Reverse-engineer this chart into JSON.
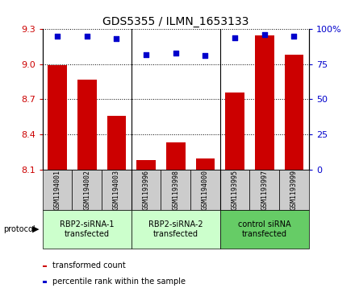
{
  "title": "GDS5355 / ILMN_1653133",
  "samples": [
    "GSM1194001",
    "GSM1194002",
    "GSM1194003",
    "GSM1193996",
    "GSM1193998",
    "GSM1194000",
    "GSM1193995",
    "GSM1193997",
    "GSM1193999"
  ],
  "bar_values": [
    8.99,
    8.87,
    8.56,
    8.18,
    8.33,
    8.19,
    8.76,
    9.25,
    9.08
  ],
  "percentile_values": [
    95,
    95,
    93,
    82,
    83,
    81,
    94,
    96,
    95
  ],
  "ylim_left": [
    8.1,
    9.3
  ],
  "ylim_right": [
    0,
    100
  ],
  "yticks_left": [
    8.1,
    8.4,
    8.7,
    9.0,
    9.3
  ],
  "yticks_right": [
    0,
    25,
    50,
    75,
    100
  ],
  "bar_color": "#cc0000",
  "dot_color": "#0000cc",
  "group_colors": [
    "#ccffcc",
    "#ccffcc",
    "#66cc66"
  ],
  "groups": [
    {
      "label": "RBP2-siRNA-1\ntransfected",
      "start": 0,
      "end": 3
    },
    {
      "label": "RBP2-siRNA-2\ntransfected",
      "start": 3,
      "end": 6
    },
    {
      "label": "control siRNA\ntransfected",
      "start": 6,
      "end": 9
    }
  ],
  "sample_bg_color": "#cccccc",
  "protocol_label": "protocol",
  "legend_items": [
    {
      "color": "#cc0000",
      "label": "transformed count"
    },
    {
      "color": "#0000cc",
      "label": "percentile rank within the sample"
    }
  ]
}
